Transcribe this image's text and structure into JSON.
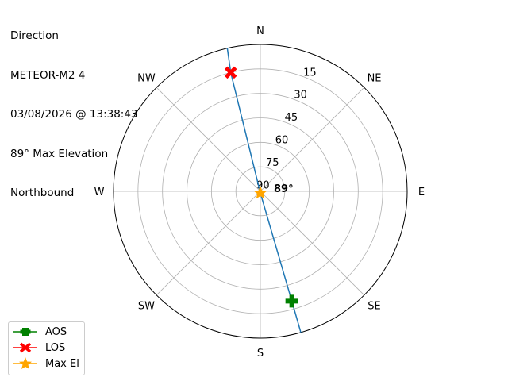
{
  "title_lines": [
    "Direction",
    "METEOR-M2 4",
    "03/08/2026 @ 13:38:43",
    "89° Max Elevation",
    "Northbound"
  ],
  "chart_data": {
    "type": "polar-line",
    "theta_direction": "clockwise",
    "theta_zero": "north",
    "r_axis": "elevation (deg), 90 at center, 0 at edge",
    "rlim": [
      0,
      90
    ],
    "grid": true,
    "direction_labels": [
      {
        "label": "N",
        "az": 0
      },
      {
        "label": "NE",
        "az": 45
      },
      {
        "label": "E",
        "az": 90
      },
      {
        "label": "SE",
        "az": 135
      },
      {
        "label": "S",
        "az": 180
      },
      {
        "label": "SW",
        "az": 225
      },
      {
        "label": "W",
        "az": 270
      },
      {
        "label": "NW",
        "az": 315
      }
    ],
    "r_tick_labels": [
      "15",
      "30",
      "45",
      "60",
      "75",
      "90"
    ],
    "r_ticks": [
      15,
      30,
      45,
      60,
      75,
      90
    ],
    "track": {
      "color": "#1f77b4",
      "points": [
        {
          "az": 164,
          "el": 0
        },
        {
          "az": 164,
          "el": 20
        },
        {
          "az": 180,
          "el": 89
        },
        {
          "az": 346,
          "el": 15
        },
        {
          "az": 347,
          "el": 0
        }
      ]
    },
    "markers": [
      {
        "name": "AOS",
        "az": 164,
        "el": 20,
        "color": "#008000",
        "shape": "plus-filled"
      },
      {
        "name": "LOS",
        "az": 346,
        "el": 15,
        "color": "#ff0000",
        "shape": "x-filled"
      },
      {
        "name": "Max El",
        "az": 180,
        "el": 89,
        "color": "#ffa500",
        "shape": "star"
      }
    ],
    "annotation": {
      "text": "89°",
      "az": 70,
      "el": 81
    }
  },
  "legend": {
    "position": "lower-left",
    "items": [
      "AOS",
      "LOS",
      "Max El"
    ]
  }
}
